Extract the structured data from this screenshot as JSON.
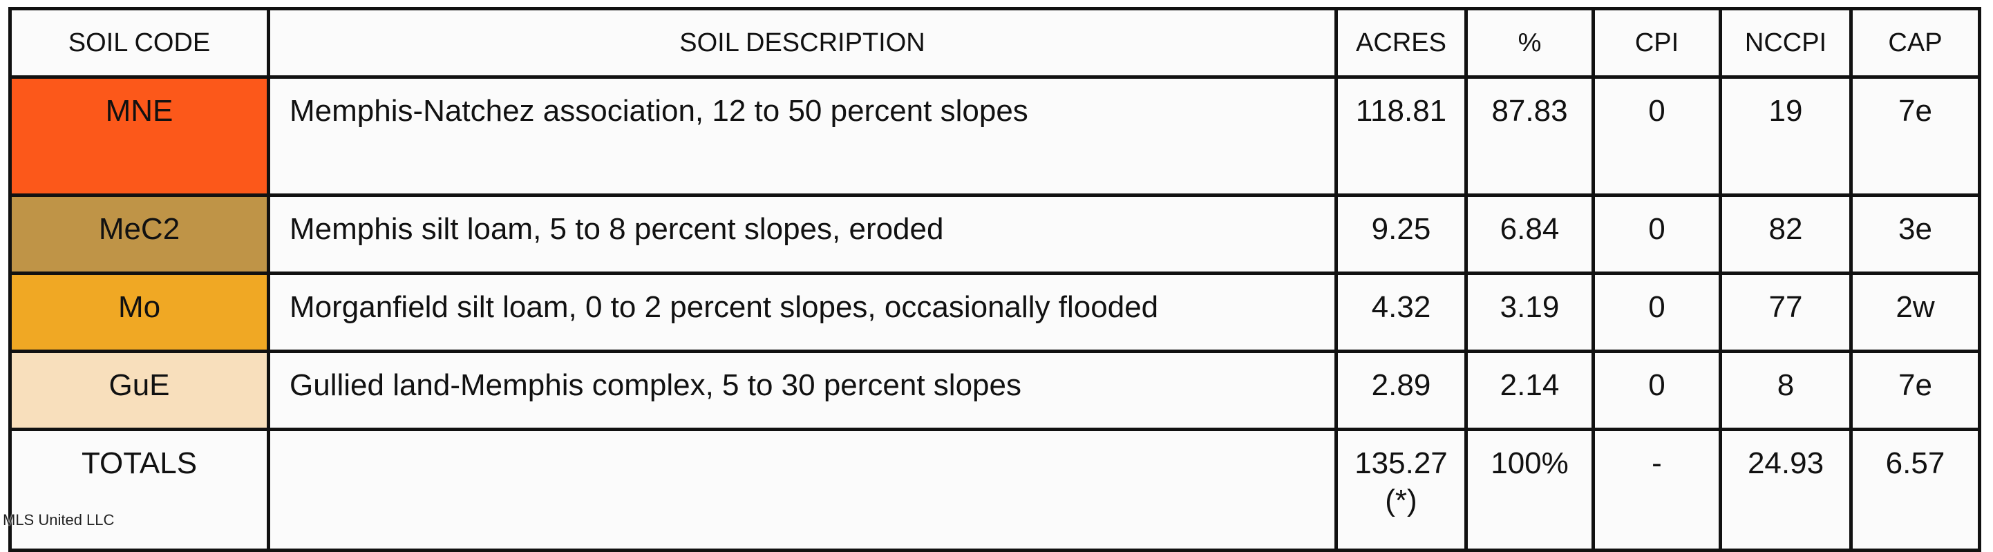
{
  "headers": {
    "code": "SOIL CODE",
    "desc": "SOIL DESCRIPTION",
    "acres": "ACRES",
    "pct": "%",
    "cpi": "CPI",
    "nccpi": "NCCPI",
    "cap": "CAP"
  },
  "rows": [
    {
      "code": "MNE",
      "color": "#fc581a",
      "desc": "Memphis-Natchez association, 12 to 50 percent slopes",
      "acres": "118.81",
      "pct": "87.83",
      "cpi": "0",
      "nccpi": "19",
      "cap": "7e"
    },
    {
      "code": "MeC2",
      "color": "#bf9447",
      "desc": "Memphis silt loam, 5 to 8 percent slopes, eroded",
      "acres": "9.25",
      "pct": "6.84",
      "cpi": "0",
      "nccpi": "82",
      "cap": "3e"
    },
    {
      "code": "Mo",
      "color": "#f0a824",
      "desc": "Morganfield silt loam, 0 to 2 percent slopes, occasionally flooded",
      "acres": "4.32",
      "pct": "3.19",
      "cpi": "0",
      "nccpi": "77",
      "cap": "2w"
    },
    {
      "code": "GuE",
      "color": "#f8dfbc",
      "desc": "Gullied land-Memphis complex, 5 to 30 percent slopes",
      "acres": "2.89",
      "pct": "2.14",
      "cpi": "0",
      "nccpi": "8",
      "cap": "7e"
    }
  ],
  "totals": {
    "label": "TOTALS",
    "desc": "",
    "acres": "135.27(*)",
    "pct": "100%",
    "cpi": "-",
    "nccpi": "24.93",
    "cap": "6.57"
  },
  "watermark": "MLS United LLC"
}
